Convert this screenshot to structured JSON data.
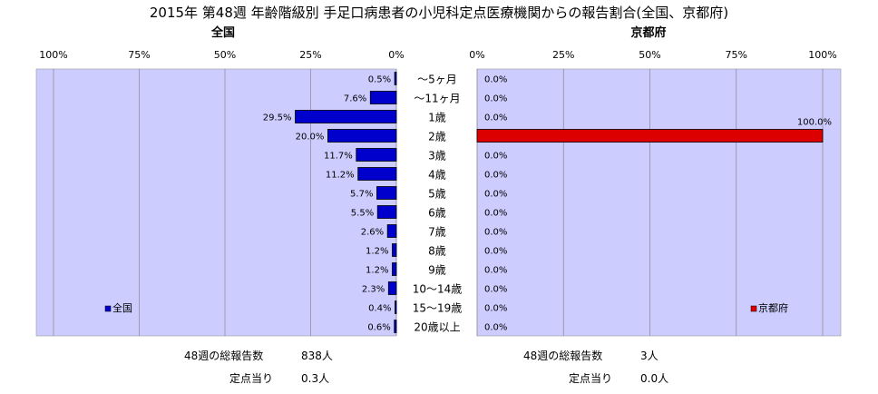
{
  "title": "2015年 第48週 年齢階級別 手足口病患者の小児科定点医療機関からの報告割合(全国、京都府)",
  "colors": {
    "plot_bg": "#ccccff",
    "national_bar": "#0000cc",
    "kyoto_bar": "#dd0000",
    "grid": "#888888"
  },
  "chart_data": [
    {
      "type": "bar",
      "orientation": "horizontal",
      "direction": "right-to-left",
      "title": "全国",
      "xlim": [
        0,
        100
      ],
      "xticks": [
        "0%",
        "25%",
        "50%",
        "75%",
        "100%"
      ],
      "categories": [
        "～5ヶ月",
        "～11ヶ月",
        "1歳",
        "2歳",
        "3歳",
        "4歳",
        "5歳",
        "6歳",
        "7歳",
        "8歳",
        "9歳",
        "10～14歳",
        "15～19歳",
        "20歳以上"
      ],
      "series": [
        {
          "name": "全国",
          "values": [
            0.5,
            7.6,
            29.5,
            20.0,
            11.7,
            11.2,
            5.7,
            5.5,
            2.6,
            1.2,
            1.2,
            2.3,
            0.4,
            0.6
          ],
          "labels": [
            "0.5%",
            "7.6%",
            "29.5%",
            "20.0%",
            "11.7%",
            "11.2%",
            "5.7%",
            "5.5%",
            "2.6%",
            "1.2%",
            "1.2%",
            "2.3%",
            "0.4%",
            "0.6%"
          ]
        }
      ],
      "legend": "bottom-left",
      "grid": true
    },
    {
      "type": "bar",
      "orientation": "horizontal",
      "direction": "left-to-right",
      "title": "京都府",
      "xlim": [
        0,
        100
      ],
      "xticks": [
        "0%",
        "25%",
        "50%",
        "75%",
        "100%"
      ],
      "categories": [
        "～5ヶ月",
        "～11ヶ月",
        "1歳",
        "2歳",
        "3歳",
        "4歳",
        "5歳",
        "6歳",
        "7歳",
        "8歳",
        "9歳",
        "10～14歳",
        "15～19歳",
        "20歳以上"
      ],
      "series": [
        {
          "name": "京都府",
          "values": [
            0.0,
            0.0,
            0.0,
            100.0,
            0.0,
            0.0,
            0.0,
            0.0,
            0.0,
            0.0,
            0.0,
            0.0,
            0.0,
            0.0
          ],
          "labels": [
            "0.0%",
            "0.0%",
            "0.0%",
            "100.0%",
            "0.0%",
            "0.0%",
            "0.0%",
            "0.0%",
            "0.0%",
            "0.0%",
            "0.0%",
            "0.0%",
            "0.0%",
            "0.0%"
          ]
        }
      ],
      "legend": "bottom-right",
      "grid": true
    }
  ],
  "footer": {
    "national": {
      "total_label": "48週の総報告数",
      "total_value": "838人",
      "per_label": "定点当り",
      "per_value": "0.3人"
    },
    "kyoto": {
      "total_label": "48週の総報告数",
      "total_value": "3人",
      "per_label": "定点当り",
      "per_value": "0.0人"
    }
  }
}
